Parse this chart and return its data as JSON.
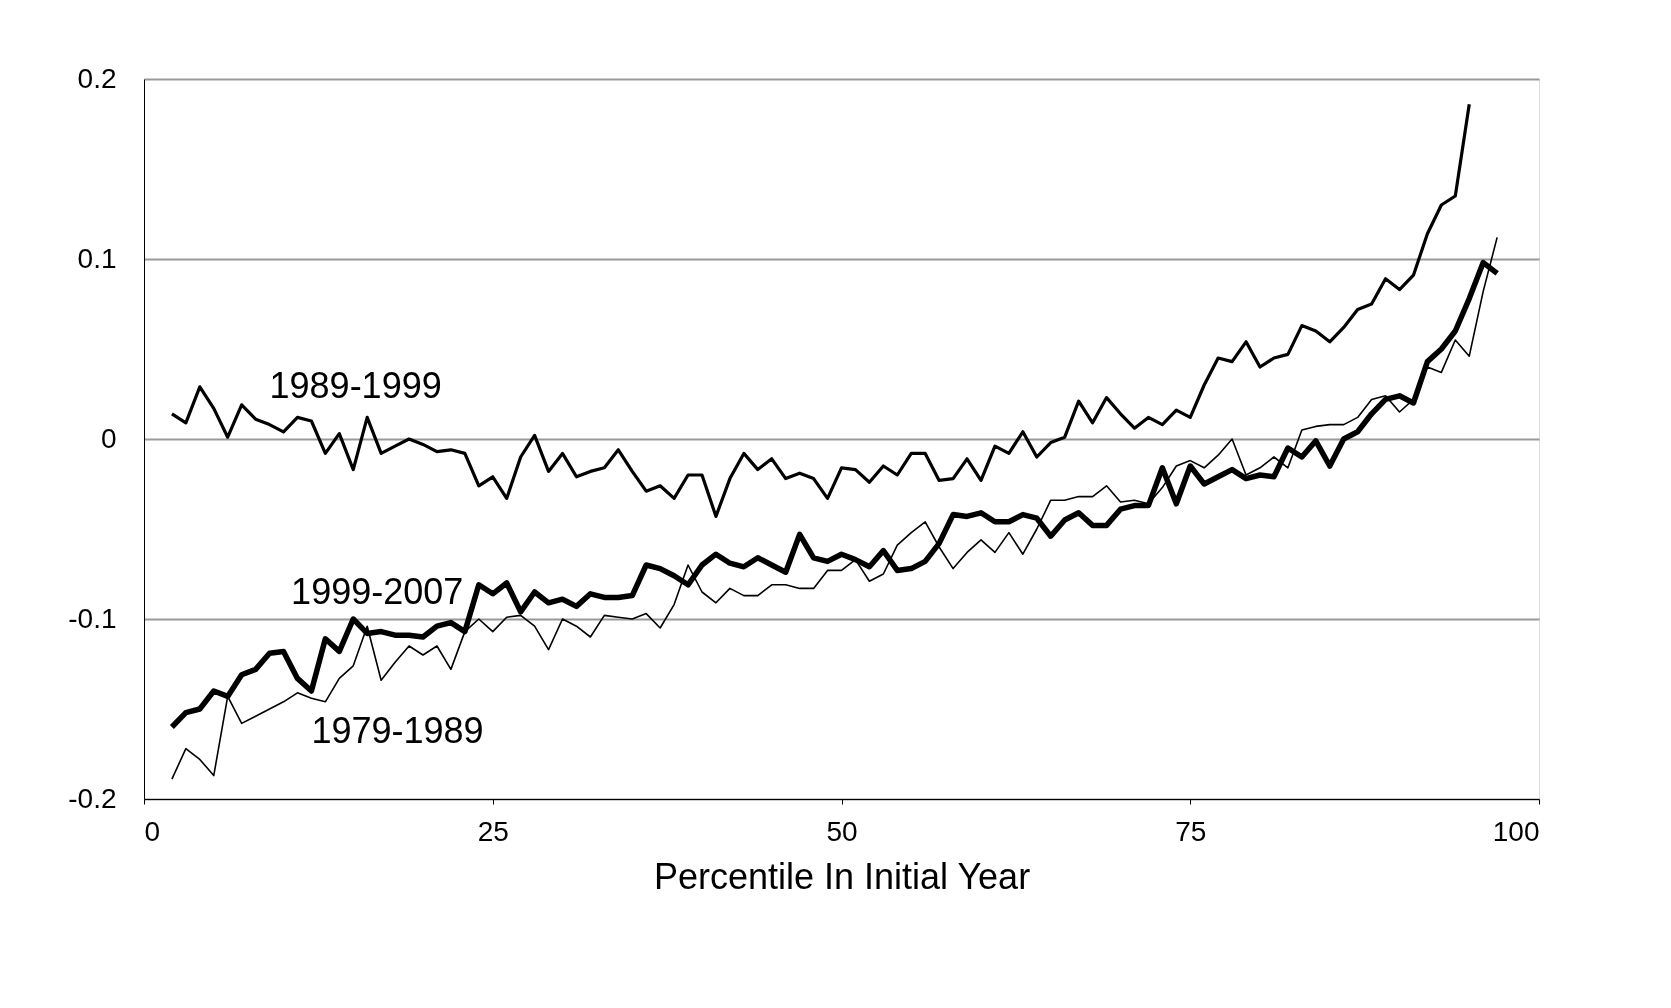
{
  "chart_data": {
    "type": "line",
    "xlabel": "Percentile In Initial Year",
    "x": [
      2,
      3,
      4,
      5,
      6,
      7,
      8,
      9,
      10,
      11,
      12,
      13,
      14,
      15,
      16,
      17,
      18,
      19,
      20,
      21,
      22,
      23,
      24,
      25,
      26,
      27,
      28,
      29,
      30,
      31,
      32,
      33,
      34,
      35,
      36,
      37,
      38,
      39,
      40,
      41,
      42,
      43,
      44,
      45,
      46,
      47,
      48,
      49,
      50,
      51,
      52,
      53,
      54,
      55,
      56,
      57,
      58,
      59,
      60,
      61,
      62,
      63,
      64,
      65,
      66,
      67,
      68,
      69,
      70,
      71,
      72,
      73,
      74,
      75,
      76,
      77,
      78,
      79,
      80,
      81,
      82,
      83,
      84,
      85,
      86,
      87,
      88,
      89,
      90,
      91,
      92,
      93,
      94,
      95,
      96,
      97
    ],
    "xlim": [
      0,
      100
    ],
    "xticks": [
      0,
      25,
      50,
      75,
      100
    ],
    "ylim": [
      -0.2,
      0.2
    ],
    "yticks": [
      -0.2,
      -0.1,
      0,
      0.1,
      0.2
    ],
    "grid": "y",
    "legend": false,
    "marker": "none",
    "line_style": "solid",
    "series": [
      {
        "name": "1989-1999",
        "color": "#000000",
        "x": [
          2,
          3,
          4,
          5,
          6,
          7,
          8,
          9,
          10,
          11,
          12,
          13,
          14,
          15,
          16,
          17,
          18,
          19,
          20,
          21,
          22,
          23,
          24,
          25,
          26,
          27,
          28,
          29,
          30,
          31,
          32,
          33,
          34,
          35,
          36,
          37,
          38,
          39,
          40,
          41,
          42,
          43,
          44,
          45,
          46,
          47,
          48,
          49,
          50,
          51,
          52,
          53,
          54,
          55,
          56,
          57,
          58,
          59,
          60,
          61,
          62,
          63,
          64,
          65,
          66,
          67,
          68,
          69,
          70,
          71,
          72,
          73,
          74,
          75,
          76,
          77,
          78,
          79,
          80,
          81,
          82,
          83,
          84,
          85,
          86,
          87,
          88,
          89,
          90,
          91,
          92,
          93,
          94,
          95
        ],
        "values": [
          0.014,
          0.009,
          0.029,
          0.017,
          0.001,
          0.019,
          0.011,
          0.008,
          0.004,
          0.012,
          0.01,
          -0.008,
          0.003,
          -0.017,
          0.012,
          -0.008,
          -0.004,
          0.0,
          -0.003,
          -0.007,
          -0.006,
          -0.008,
          -0.026,
          -0.021,
          -0.033,
          -0.01,
          0.002,
          -0.018,
          -0.008,
          -0.021,
          -0.018,
          -0.016,
          -0.006,
          -0.018,
          -0.029,
          -0.026,
          -0.033,
          -0.02,
          -0.02,
          -0.043,
          -0.022,
          -0.008,
          -0.017,
          -0.011,
          -0.022,
          -0.019,
          -0.022,
          -0.033,
          -0.016,
          -0.017,
          -0.024,
          -0.015,
          -0.02,
          -0.008,
          -0.008,
          -0.023,
          -0.022,
          -0.011,
          -0.023,
          -0.004,
          -0.008,
          0.004,
          -0.01,
          -0.002,
          0.001,
          0.021,
          0.009,
          0.023,
          0.014,
          0.006,
          0.012,
          0.008,
          0.016,
          0.012,
          0.03,
          0.045,
          0.043,
          0.054,
          0.04,
          0.045,
          0.047,
          0.063,
          0.06,
          0.054,
          0.062,
          0.072,
          0.075,
          0.089,
          0.083,
          0.091,
          0.114,
          0.13,
          0.135,
          0.186
        ]
      },
      {
        "name": "1999-2007",
        "color": "#000000",
        "values": [
          -0.16,
          -0.152,
          -0.15,
          -0.14,
          -0.143,
          -0.131,
          -0.128,
          -0.119,
          -0.118,
          -0.133,
          -0.14,
          -0.111,
          -0.118,
          -0.1,
          -0.108,
          -0.107,
          -0.109,
          -0.109,
          -0.11,
          -0.104,
          -0.102,
          -0.107,
          -0.081,
          -0.086,
          -0.08,
          -0.096,
          -0.085,
          -0.091,
          -0.089,
          -0.093,
          -0.086,
          -0.088,
          -0.088,
          -0.087,
          -0.07,
          -0.072,
          -0.076,
          -0.081,
          -0.07,
          -0.064,
          -0.069,
          -0.071,
          -0.066,
          -0.07,
          -0.074,
          -0.053,
          -0.066,
          -0.068,
          -0.064,
          -0.067,
          -0.071,
          -0.062,
          -0.073,
          -0.072,
          -0.068,
          -0.058,
          -0.042,
          -0.043,
          -0.041,
          -0.046,
          -0.046,
          -0.042,
          -0.044,
          -0.054,
          -0.045,
          -0.041,
          -0.048,
          -0.048,
          -0.039,
          -0.037,
          -0.037,
          -0.016,
          -0.036,
          -0.015,
          -0.025,
          -0.021,
          -0.017,
          -0.022,
          -0.02,
          -0.021,
          -0.005,
          -0.01,
          -0.001,
          -0.015,
          0.0,
          0.004,
          0.014,
          0.022,
          0.024,
          0.02,
          0.043,
          0.05,
          0.06,
          0.078,
          0.098,
          0.092
        ]
      },
      {
        "name": "1979-1989",
        "color": "#000000",
        "values": [
          -0.189,
          -0.172,
          -0.178,
          -0.187,
          -0.143,
          -0.158,
          -0.154,
          -0.15,
          -0.146,
          -0.141,
          -0.144,
          -0.146,
          -0.133,
          -0.126,
          -0.104,
          -0.134,
          -0.124,
          -0.115,
          -0.12,
          -0.115,
          -0.128,
          -0.107,
          -0.1,
          -0.107,
          -0.099,
          -0.098,
          -0.104,
          -0.117,
          -0.1,
          -0.104,
          -0.11,
          -0.098,
          -0.099,
          -0.1,
          -0.097,
          -0.105,
          -0.092,
          -0.07,
          -0.085,
          -0.091,
          -0.083,
          -0.087,
          -0.087,
          -0.081,
          -0.081,
          -0.083,
          -0.083,
          -0.073,
          -0.073,
          -0.067,
          -0.079,
          -0.075,
          -0.059,
          -0.052,
          -0.046,
          -0.06,
          -0.072,
          -0.063,
          -0.056,
          -0.063,
          -0.052,
          -0.064,
          -0.05,
          -0.034,
          -0.034,
          -0.032,
          -0.032,
          -0.026,
          -0.035,
          -0.034,
          -0.036,
          -0.027,
          -0.015,
          -0.012,
          -0.016,
          -0.009,
          0.0,
          -0.02,
          -0.016,
          -0.01,
          -0.016,
          0.005,
          0.007,
          0.008,
          0.008,
          0.012,
          0.022,
          0.024,
          0.015,
          0.022,
          0.04,
          0.037,
          0.055,
          0.046,
          0.082,
          0.112
        ]
      }
    ]
  }
}
